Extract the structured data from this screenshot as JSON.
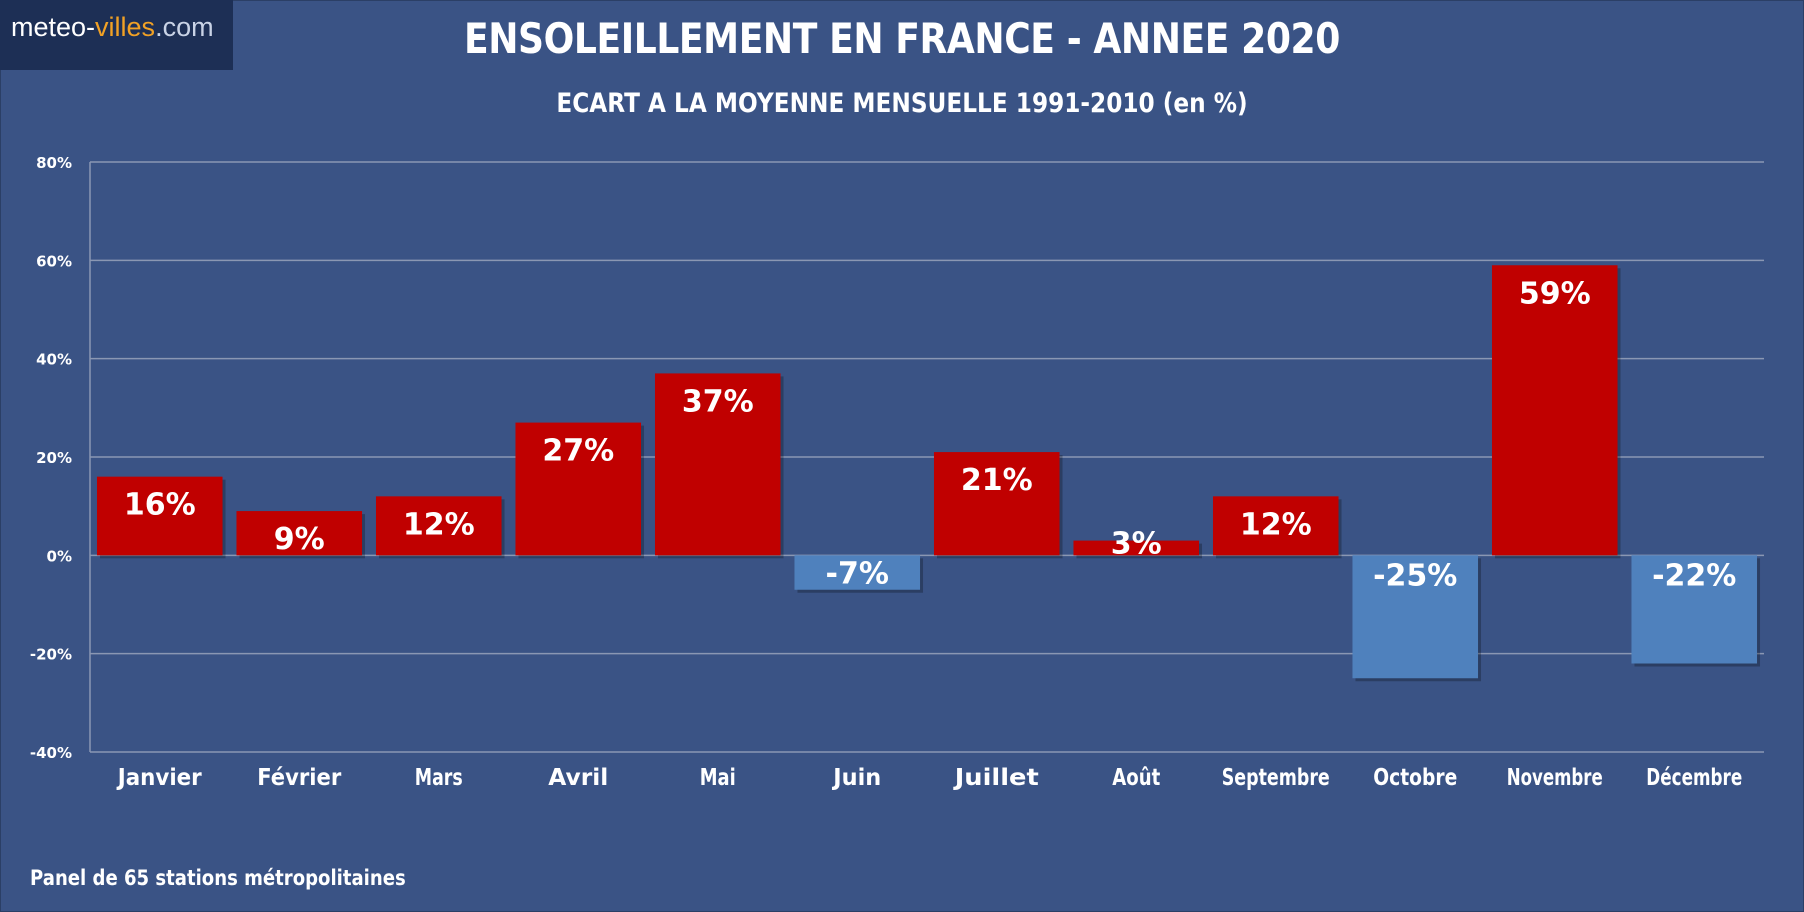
{
  "brand": {
    "logo_part1": "meteo-",
    "logo_part2": "villes",
    "logo_part3": ".com",
    "accent_color": "#f1a125"
  },
  "title": "ENSOLEILLEMENT EN FRANCE - ANNEE 2020",
  "subtitle": "ECART A LA MOYENNE MENSUELLE 1991-2010 (en %)",
  "footnote": "Panel de 65 stations métropolitaines",
  "colors": {
    "background": "#3a5385",
    "positive": "#c00000",
    "negative": "#4f81bd",
    "grid": "#8a97b3"
  },
  "chart_data": {
    "type": "bar",
    "categories": [
      "Janvier",
      "Février",
      "Mars",
      "Avril",
      "Mai",
      "Juin",
      "Juillet",
      "Août",
      "Septembre",
      "Octobre",
      "Novembre",
      "Décembre"
    ],
    "values": [
      16,
      9,
      12,
      27,
      37,
      -7,
      21,
      3,
      12,
      -25,
      59,
      -22
    ],
    "data_labels": [
      "16%",
      "9%",
      "12%",
      "27%",
      "37%",
      "-7%",
      "21%",
      "3%",
      "12%",
      "-25%",
      "59%",
      "-22%"
    ],
    "ylim": [
      -40,
      80
    ],
    "yticks": [
      80,
      60,
      40,
      20,
      0,
      -20,
      -40
    ],
    "ytick_labels": [
      "80%",
      "60%",
      "40%",
      "20%",
      "0%",
      "-20%",
      "-40%"
    ],
    "grid": true
  }
}
